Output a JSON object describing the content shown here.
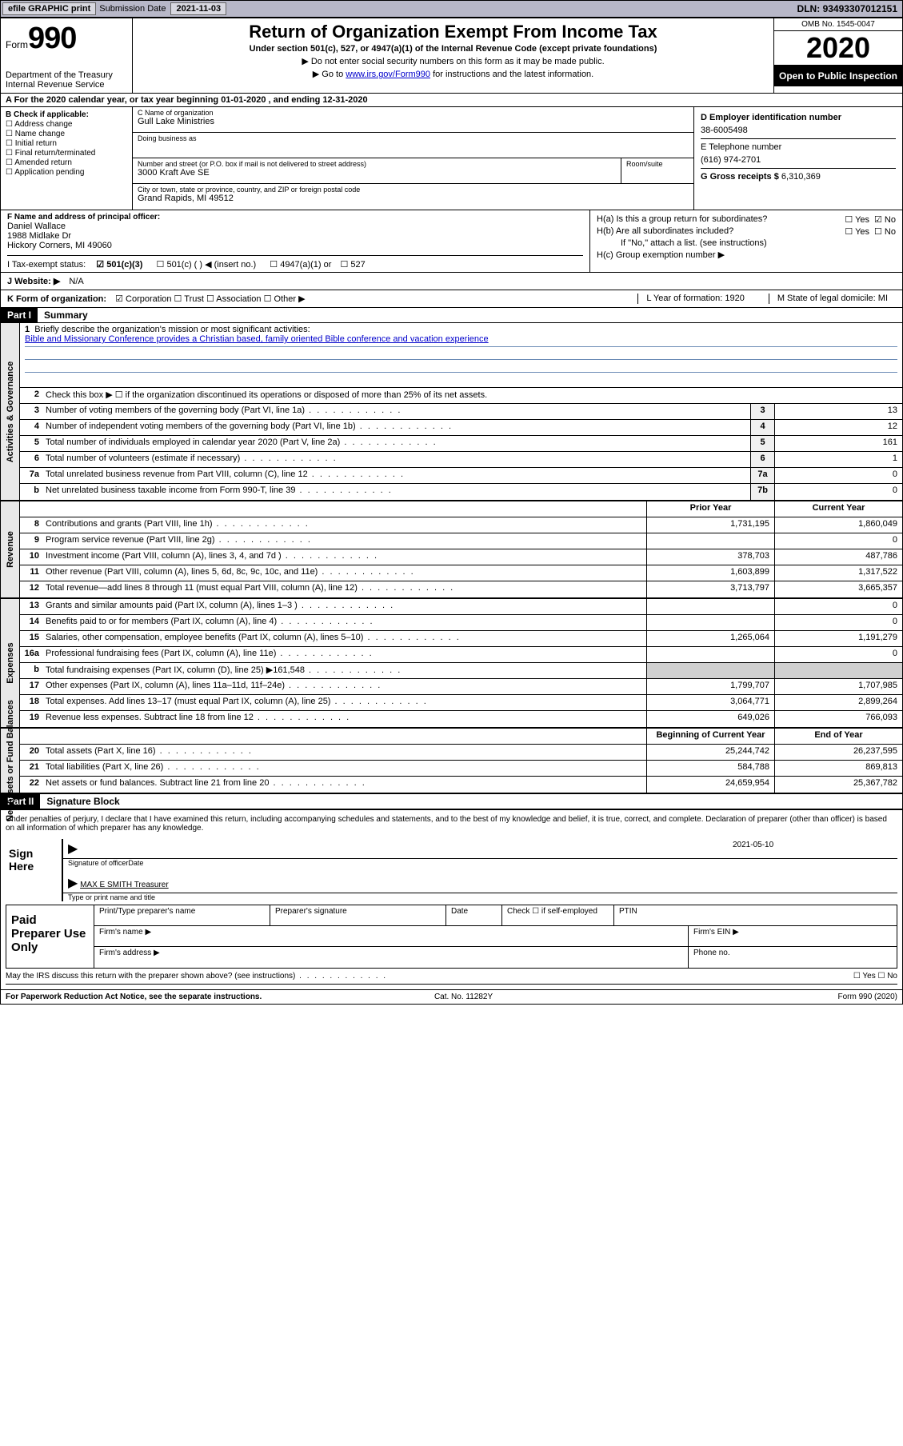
{
  "topbar": {
    "efile": "efile GRAPHIC print",
    "submission_label": "Submission Date",
    "submission_date": "2021-11-03",
    "dln_label": "DLN:",
    "dln": "93493307012151"
  },
  "header": {
    "form_label": "Form",
    "form_number": "990",
    "dept": "Department of the Treasury\nInternal Revenue Service",
    "title": "Return of Organization Exempt From Income Tax",
    "subtitle": "Under section 501(c), 527, or 4947(a)(1) of the Internal Revenue Code (except private foundations)",
    "note1": "▶ Do not enter social security numbers on this form as it may be made public.",
    "note2_pre": "▶ Go to ",
    "note2_link": "www.irs.gov/Form990",
    "note2_post": " for instructions and the latest information.",
    "omb": "OMB No. 1545-0047",
    "year": "2020",
    "inspect": "Open to Public Inspection"
  },
  "rowA": "A For the 2020 calendar year, or tax year beginning 01-01-2020    , and ending 12-31-2020",
  "sectionB": {
    "header": "B Check if applicable:",
    "items": [
      "Address change",
      "Name change",
      "Initial return",
      "Final return/terminated",
      "Amended return",
      "Application pending"
    ]
  },
  "sectionC": {
    "name_label": "C Name of organization",
    "name": "Gull Lake Ministries",
    "dba_label": "Doing business as",
    "addr_label": "Number and street (or P.O. box if mail is not delivered to street address)",
    "addr": "3000 Kraft Ave SE",
    "room_label": "Room/suite",
    "city_label": "City or town, state or province, country, and ZIP or foreign postal code",
    "city": "Grand Rapids, MI  49512"
  },
  "sectionD": {
    "ein_label": "D Employer identification number",
    "ein": "38-6005498",
    "phone_label": "E Telephone number",
    "phone": "(616) 974-2701",
    "gross_label": "G Gross receipts $",
    "gross": "6,310,369"
  },
  "sectionF": {
    "label": "F Name and address of principal officer:",
    "name": "Daniel Wallace",
    "addr1": "1988 Midlake Dr",
    "addr2": "Hickory Corners, MI  49060"
  },
  "sectionH": {
    "a_label": "H(a)  Is this a group return for subordinates?",
    "a_yes": "☐ Yes",
    "a_no": "☑ No",
    "b_label": "H(b)  Are all subordinates included?",
    "b_yes": "☐ Yes",
    "b_no": "☐ No",
    "b_note": "If \"No,\" attach a list. (see instructions)",
    "c_label": "H(c)  Group exemption number ▶"
  },
  "rowI": {
    "label": "I   Tax-exempt status:",
    "opt1": "☑  501(c)(3)",
    "opt2": "☐   501(c) (  ) ◀ (insert no.)",
    "opt3": "☐  4947(a)(1) or",
    "opt4": "☐  527"
  },
  "rowJ": {
    "label": "J   Website: ▶",
    "value": "N/A"
  },
  "rowK": {
    "label": "K Form of organization:",
    "opts": "☑  Corporation  ☐  Trust  ☐  Association  ☐  Other ▶",
    "L": "L Year of formation: 1920",
    "M": "M State of legal domicile: MI"
  },
  "part1": {
    "hdr": "Part I",
    "title": "Summary"
  },
  "summary": {
    "q1_label": "Briefly describe the organization's mission or most significant activities:",
    "q1_text": "Bible and Missionary Conference provides a Christian based, family oriented Bible conference and vacation experience",
    "q2": "Check this box ▶ ☐  if the organization discontinued its operations or disposed of more than 25% of its net assets.",
    "lines_gov": [
      {
        "n": "3",
        "t": "Number of voting members of the governing body (Part VI, line 1a)",
        "box": "3",
        "v": "13"
      },
      {
        "n": "4",
        "t": "Number of independent voting members of the governing body (Part VI, line 1b)",
        "box": "4",
        "v": "12"
      },
      {
        "n": "5",
        "t": "Total number of individuals employed in calendar year 2020 (Part V, line 2a)",
        "box": "5",
        "v": "161"
      },
      {
        "n": "6",
        "t": "Total number of volunteers (estimate if necessary)",
        "box": "6",
        "v": "1"
      },
      {
        "n": "7a",
        "t": "Total unrelated business revenue from Part VIII, column (C), line 12",
        "box": "7a",
        "v": "0"
      },
      {
        "n": "b",
        "t": "Net unrelated business taxable income from Form 990-T, line 39",
        "box": "7b",
        "v": "0"
      }
    ],
    "col_prior": "Prior Year",
    "col_current": "Current Year",
    "lines_rev": [
      {
        "n": "8",
        "t": "Contributions and grants (Part VIII, line 1h)",
        "p": "1,731,195",
        "c": "1,860,049"
      },
      {
        "n": "9",
        "t": "Program service revenue (Part VIII, line 2g)",
        "p": "",
        "c": "0"
      },
      {
        "n": "10",
        "t": "Investment income (Part VIII, column (A), lines 3, 4, and 7d )",
        "p": "378,703",
        "c": "487,786"
      },
      {
        "n": "11",
        "t": "Other revenue (Part VIII, column (A), lines 5, 6d, 8c, 9c, 10c, and 11e)",
        "p": "1,603,899",
        "c": "1,317,522"
      },
      {
        "n": "12",
        "t": "Total revenue—add lines 8 through 11 (must equal Part VIII, column (A), line 12)",
        "p": "3,713,797",
        "c": "3,665,357"
      }
    ],
    "lines_exp": [
      {
        "n": "13",
        "t": "Grants and similar amounts paid (Part IX, column (A), lines 1–3 )",
        "p": "",
        "c": "0"
      },
      {
        "n": "14",
        "t": "Benefits paid to or for members (Part IX, column (A), line 4)",
        "p": "",
        "c": "0"
      },
      {
        "n": "15",
        "t": "Salaries, other compensation, employee benefits (Part IX, column (A), lines 5–10)",
        "p": "1,265,064",
        "c": "1,191,279"
      },
      {
        "n": "16a",
        "t": "Professional fundraising fees (Part IX, column (A), line 11e)",
        "p": "",
        "c": "0"
      },
      {
        "n": "b",
        "t": "Total fundraising expenses (Part IX, column (D), line 25) ▶161,548",
        "p": "shade",
        "c": "shade"
      },
      {
        "n": "17",
        "t": "Other expenses (Part IX, column (A), lines 11a–11d, 11f–24e)",
        "p": "1,799,707",
        "c": "1,707,985"
      },
      {
        "n": "18",
        "t": "Total expenses. Add lines 13–17 (must equal Part IX, column (A), line 25)",
        "p": "3,064,771",
        "c": "2,899,264"
      },
      {
        "n": "19",
        "t": "Revenue less expenses. Subtract line 18 from line 12",
        "p": "649,026",
        "c": "766,093"
      }
    ],
    "col_begin": "Beginning of Current Year",
    "col_end": "End of Year",
    "lines_net": [
      {
        "n": "20",
        "t": "Total assets (Part X, line 16)",
        "p": "25,244,742",
        "c": "26,237,595"
      },
      {
        "n": "21",
        "t": "Total liabilities (Part X, line 26)",
        "p": "584,788",
        "c": "869,813"
      },
      {
        "n": "22",
        "t": "Net assets or fund balances. Subtract line 21 from line 20",
        "p": "24,659,954",
        "c": "25,367,782"
      }
    ],
    "side_gov": "Activities & Governance",
    "side_rev": "Revenue",
    "side_exp": "Expenses",
    "side_net": "Net Assets or Fund Balances"
  },
  "part2": {
    "hdr": "Part II",
    "title": "Signature Block"
  },
  "sig": {
    "perjury": "Under penalties of perjury, I declare that I have examined this return, including accompanying schedules and statements, and to the best of my knowledge and belief, it is true, correct, and complete. Declaration of preparer (other than officer) is based on all information of which preparer has any knowledge.",
    "sign_here": "Sign Here",
    "sig_officer": "Signature of officer",
    "date": "2021-05-10",
    "date_label": "Date",
    "name_title": "MAX E SMITH  Treasurer",
    "name_title_label": "Type or print name and title",
    "paid_prep": "Paid Preparer Use Only",
    "prep_name": "Print/Type preparer's name",
    "prep_sig": "Preparer's signature",
    "prep_date": "Date",
    "prep_check": "Check ☐ if self-employed",
    "ptin": "PTIN",
    "firm_name": "Firm's name    ▶",
    "firm_ein": "Firm's EIN ▶",
    "firm_addr": "Firm's address ▶",
    "phone": "Phone no.",
    "discuss": "May the IRS discuss this return with the preparer shown above? (see instructions)",
    "discuss_opts": "☐ Yes   ☐ No"
  },
  "footer": {
    "left": "For Paperwork Reduction Act Notice, see the separate instructions.",
    "mid": "Cat. No. 11282Y",
    "right": "Form 990 (2020)"
  }
}
